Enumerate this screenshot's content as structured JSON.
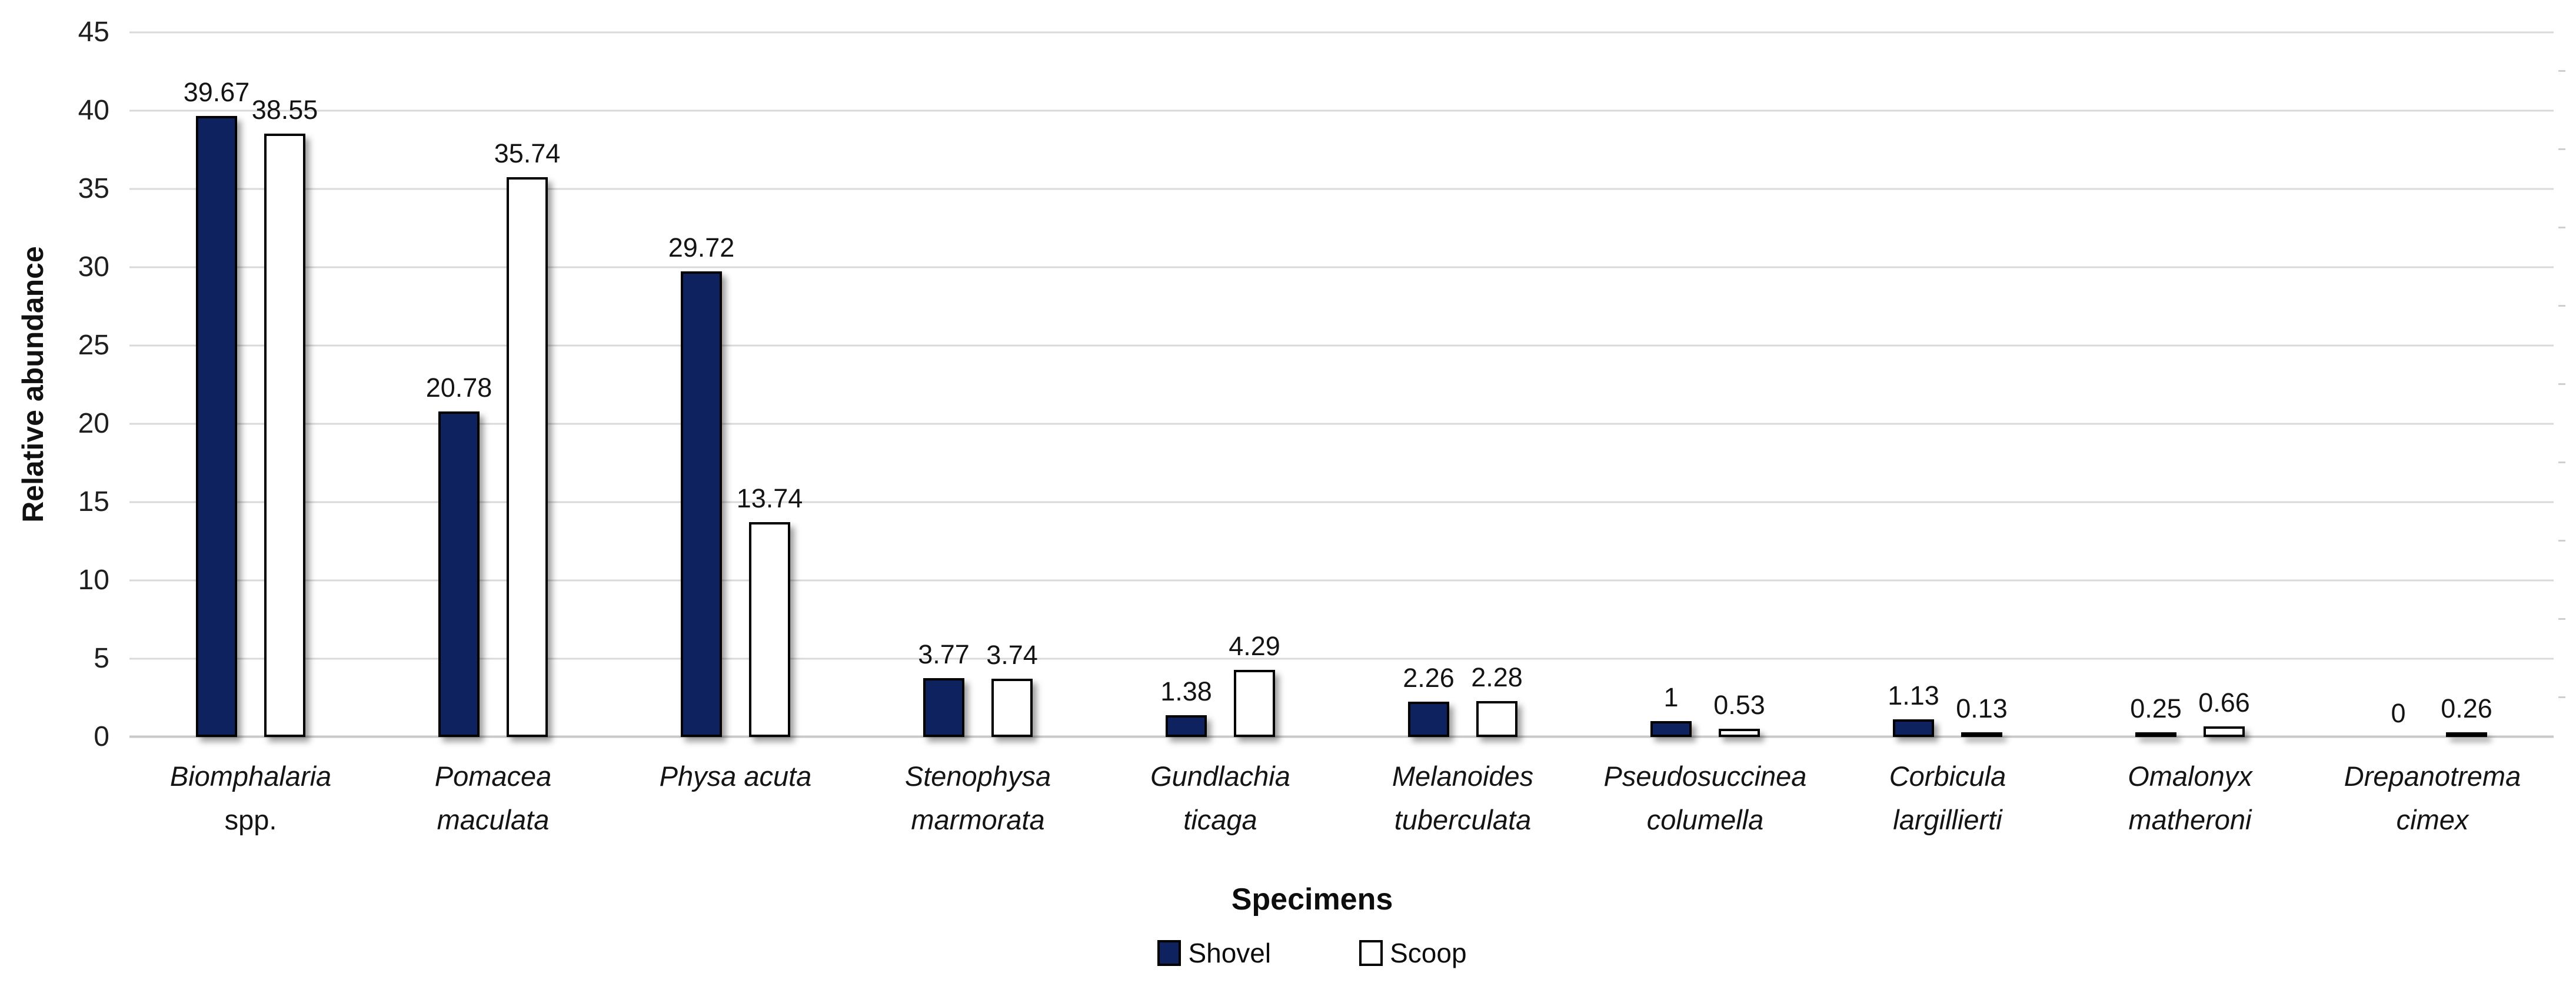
{
  "chart_data": {
    "type": "bar",
    "title": "",
    "xlabel": "Specimens",
    "ylabel": "Relative abundance",
    "ylim": [
      0,
      45
    ],
    "yticks": [
      0,
      5,
      10,
      15,
      20,
      25,
      30,
      35,
      40,
      45
    ],
    "grid": "horizontal solid light-gray lines, minor ticks on right edge",
    "legend_position": "bottom-center",
    "gridline_color": "#d9d9d9",
    "categories": [
      {
        "name": "Biomphalaria spp.",
        "lines": [
          {
            "text": "Biomphalaria",
            "italic": true
          },
          {
            "text": "spp.",
            "italic": false
          }
        ]
      },
      {
        "name": "Pomacea maculata",
        "lines": [
          {
            "text": "Pomacea",
            "italic": true
          },
          {
            "text": "maculata",
            "italic": true
          }
        ]
      },
      {
        "name": "Physa acuta",
        "lines": [
          {
            "text": "Physa acuta",
            "italic": true
          },
          {
            "text": "",
            "italic": true
          }
        ]
      },
      {
        "name": "Stenophysa marmorata",
        "lines": [
          {
            "text": "Stenophysa",
            "italic": true
          },
          {
            "text": "marmorata",
            "italic": true
          }
        ]
      },
      {
        "name": "Gundlachia ticaga",
        "lines": [
          {
            "text": "Gundlachia",
            "italic": true
          },
          {
            "text": "ticaga",
            "italic": true
          }
        ]
      },
      {
        "name": "Melanoides tuberculata",
        "lines": [
          {
            "text": "Melanoides",
            "italic": true
          },
          {
            "text": "tuberculata",
            "italic": true
          }
        ]
      },
      {
        "name": "Pseudosuccinea columella",
        "lines": [
          {
            "text": "Pseudosuccinea",
            "italic": true
          },
          {
            "text": "columella",
            "italic": true
          }
        ]
      },
      {
        "name": "Corbicula largillierti",
        "lines": [
          {
            "text": "Corbicula",
            "italic": true
          },
          {
            "text": "largillierti",
            "italic": true
          }
        ]
      },
      {
        "name": "Omalonyx matheroni",
        "lines": [
          {
            "text": "Omalonyx",
            "italic": true
          },
          {
            "text": "matheroni",
            "italic": true
          }
        ]
      },
      {
        "name": "Drepanotrema cimex",
        "lines": [
          {
            "text": "Drepanotrema",
            "italic": true
          },
          {
            "text": "cimex",
            "italic": true
          }
        ]
      }
    ],
    "series": [
      {
        "name": "Shovel",
        "color": "#0e2260",
        "border_color": "#000000",
        "values": [
          39.67,
          20.78,
          29.72,
          3.77,
          1.38,
          2.26,
          1,
          1.13,
          0.25,
          0
        ],
        "labels": [
          "39.67",
          "20.78",
          "29.72",
          "3.77",
          "1.38",
          "2.26",
          "1",
          "1.13",
          "0.25",
          "0"
        ]
      },
      {
        "name": "Scoop",
        "color": "#ffffff",
        "border_color": "#000000",
        "values": [
          38.55,
          35.74,
          13.74,
          3.74,
          4.29,
          2.28,
          0.53,
          0.13,
          0.66,
          0.26
        ],
        "labels": [
          "38.55",
          "35.74",
          "13.74",
          "3.74",
          "4.29",
          "2.28",
          "0.53",
          "0.13",
          "0.66",
          "0.26"
        ]
      }
    ]
  }
}
